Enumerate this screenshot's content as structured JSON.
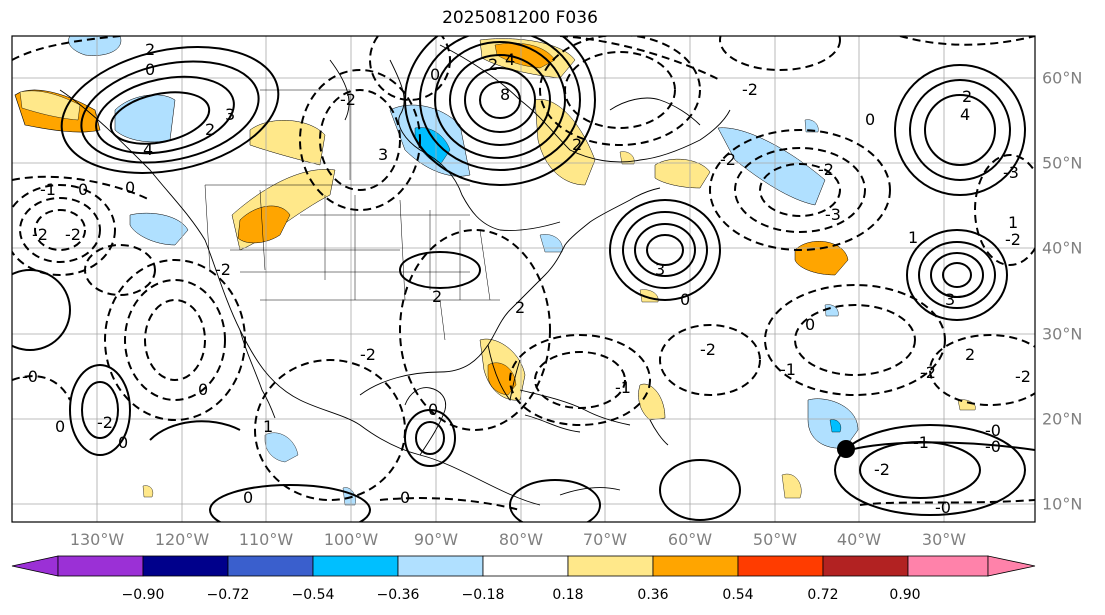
{
  "title": "2025081200 F036",
  "lon_labels": [
    "130°W",
    "120°W",
    "110°W",
    "100°W",
    "90°W",
    "80°W",
    "70°W",
    "60°W",
    "50°W",
    "40°W",
    "30°W"
  ],
  "lat_labels": [
    "60°N",
    "50°N",
    "40°N",
    "30°N",
    "20°N",
    "10°N"
  ],
  "colorbar": {
    "ticks": [
      "−0.90",
      "−0.72",
      "−0.54",
      "−0.36",
      "−0.18",
      "0.18",
      "0.36",
      "0.54",
      "0.72",
      "0.90"
    ],
    "colors": [
      "#9b30d6",
      "#00008b",
      "#3a5fcd",
      "#00bfff",
      "#b0e0ff",
      "#ffffff",
      "#ffe88a",
      "#ffa500",
      "#ff3c00",
      "#b22222",
      "#ff82aa"
    ]
  },
  "contour_labels": [
    "2",
    "0",
    "4",
    "3",
    "2",
    "-1",
    "0",
    "-2",
    "-2",
    "8",
    "4",
    "2",
    "0",
    "2",
    "4",
    "2",
    "-3",
    "3",
    "-2",
    "0",
    "2",
    "1",
    "-2",
    "2",
    "0",
    "-1",
    "1",
    "0",
    "0",
    "-2",
    "-2",
    "0",
    "0",
    "-1",
    "0",
    "3",
    "-2",
    "-0",
    "-0",
    "2",
    "0",
    "-1",
    "0",
    "-2",
    "-2",
    "-0",
    "1",
    "-3",
    "0",
    "-0",
    "-2",
    "3",
    "-2",
    "-2",
    "-2",
    "-2"
  ],
  "marker": "storm-center"
}
